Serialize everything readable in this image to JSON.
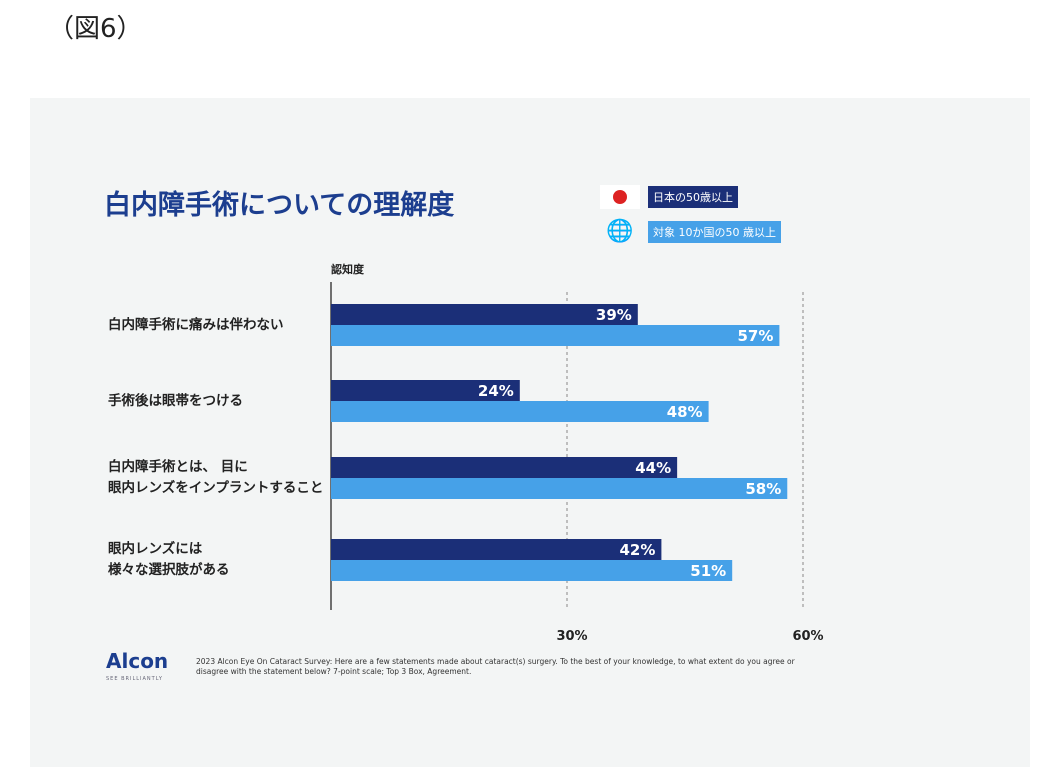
{
  "figure_label": "（図6）",
  "chart_data": {
    "type": "bar",
    "orientation": "horizontal",
    "title": "白内障手術についての理解度",
    "xlabel": "認知度",
    "categories": [
      "白内障手術に痛みは伴わない",
      "手術後は眼帯をつける",
      "白内障手術とは、 目に\n眼内レンズをインプラントすること",
      "眼内レンズには\n様々な選択肢がある"
    ],
    "series": [
      {
        "name": "日本の50歳以上",
        "color": "#1b2f78",
        "values": [
          39,
          24,
          44,
          42
        ],
        "labels": [
          "39%",
          "24%",
          "44%",
          "42%"
        ]
      },
      {
        "name": "対象 10か国の50 歳以上",
        "color": "#46a1e8",
        "values": [
          57,
          48,
          58,
          51
        ],
        "labels": [
          "57%",
          "48%",
          "58%",
          "51%"
        ]
      }
    ],
    "xticks": [
      30,
      60
    ],
    "xtick_labels": [
      "30%",
      "60%"
    ],
    "xlim": [
      0,
      60
    ],
    "gridlines": "dashed at ticks",
    "legend": "top-right"
  },
  "footer": {
    "logo": "Alcon",
    "tagline": "SEE BRILLIANTLY",
    "note": "2023 Alcon Eye On Cataract Survey: Here are a few statements made about cataract(s) surgery. To the best of your knowledge, to what extent do you agree or disagree with the statement below? 7-point scale; Top 3 Box, Agreement."
  }
}
